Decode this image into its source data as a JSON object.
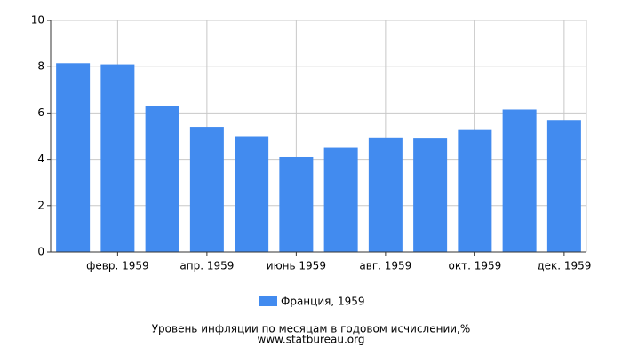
{
  "chart_data": {
    "type": "bar",
    "title": "Уровень инфляции по месяцам в годовом исчислении,%",
    "source": "www.statbureau.org",
    "categories": [
      null,
      "февр. 1959",
      null,
      "апр. 1959",
      null,
      "июнь 1959",
      null,
      "авг. 1959",
      null,
      "окт. 1959",
      null,
      "дек. 1959"
    ],
    "series": [
      {
        "name": "Франция, 1959",
        "color": "#428bef",
        "values": [
          8.15,
          8.1,
          6.3,
          5.4,
          5.0,
          4.1,
          4.5,
          4.95,
          4.9,
          5.3,
          6.15,
          5.7
        ]
      }
    ],
    "ylim": [
      0,
      10
    ],
    "yticks": [
      0,
      2,
      4,
      6,
      8,
      10
    ],
    "grid": true
  }
}
